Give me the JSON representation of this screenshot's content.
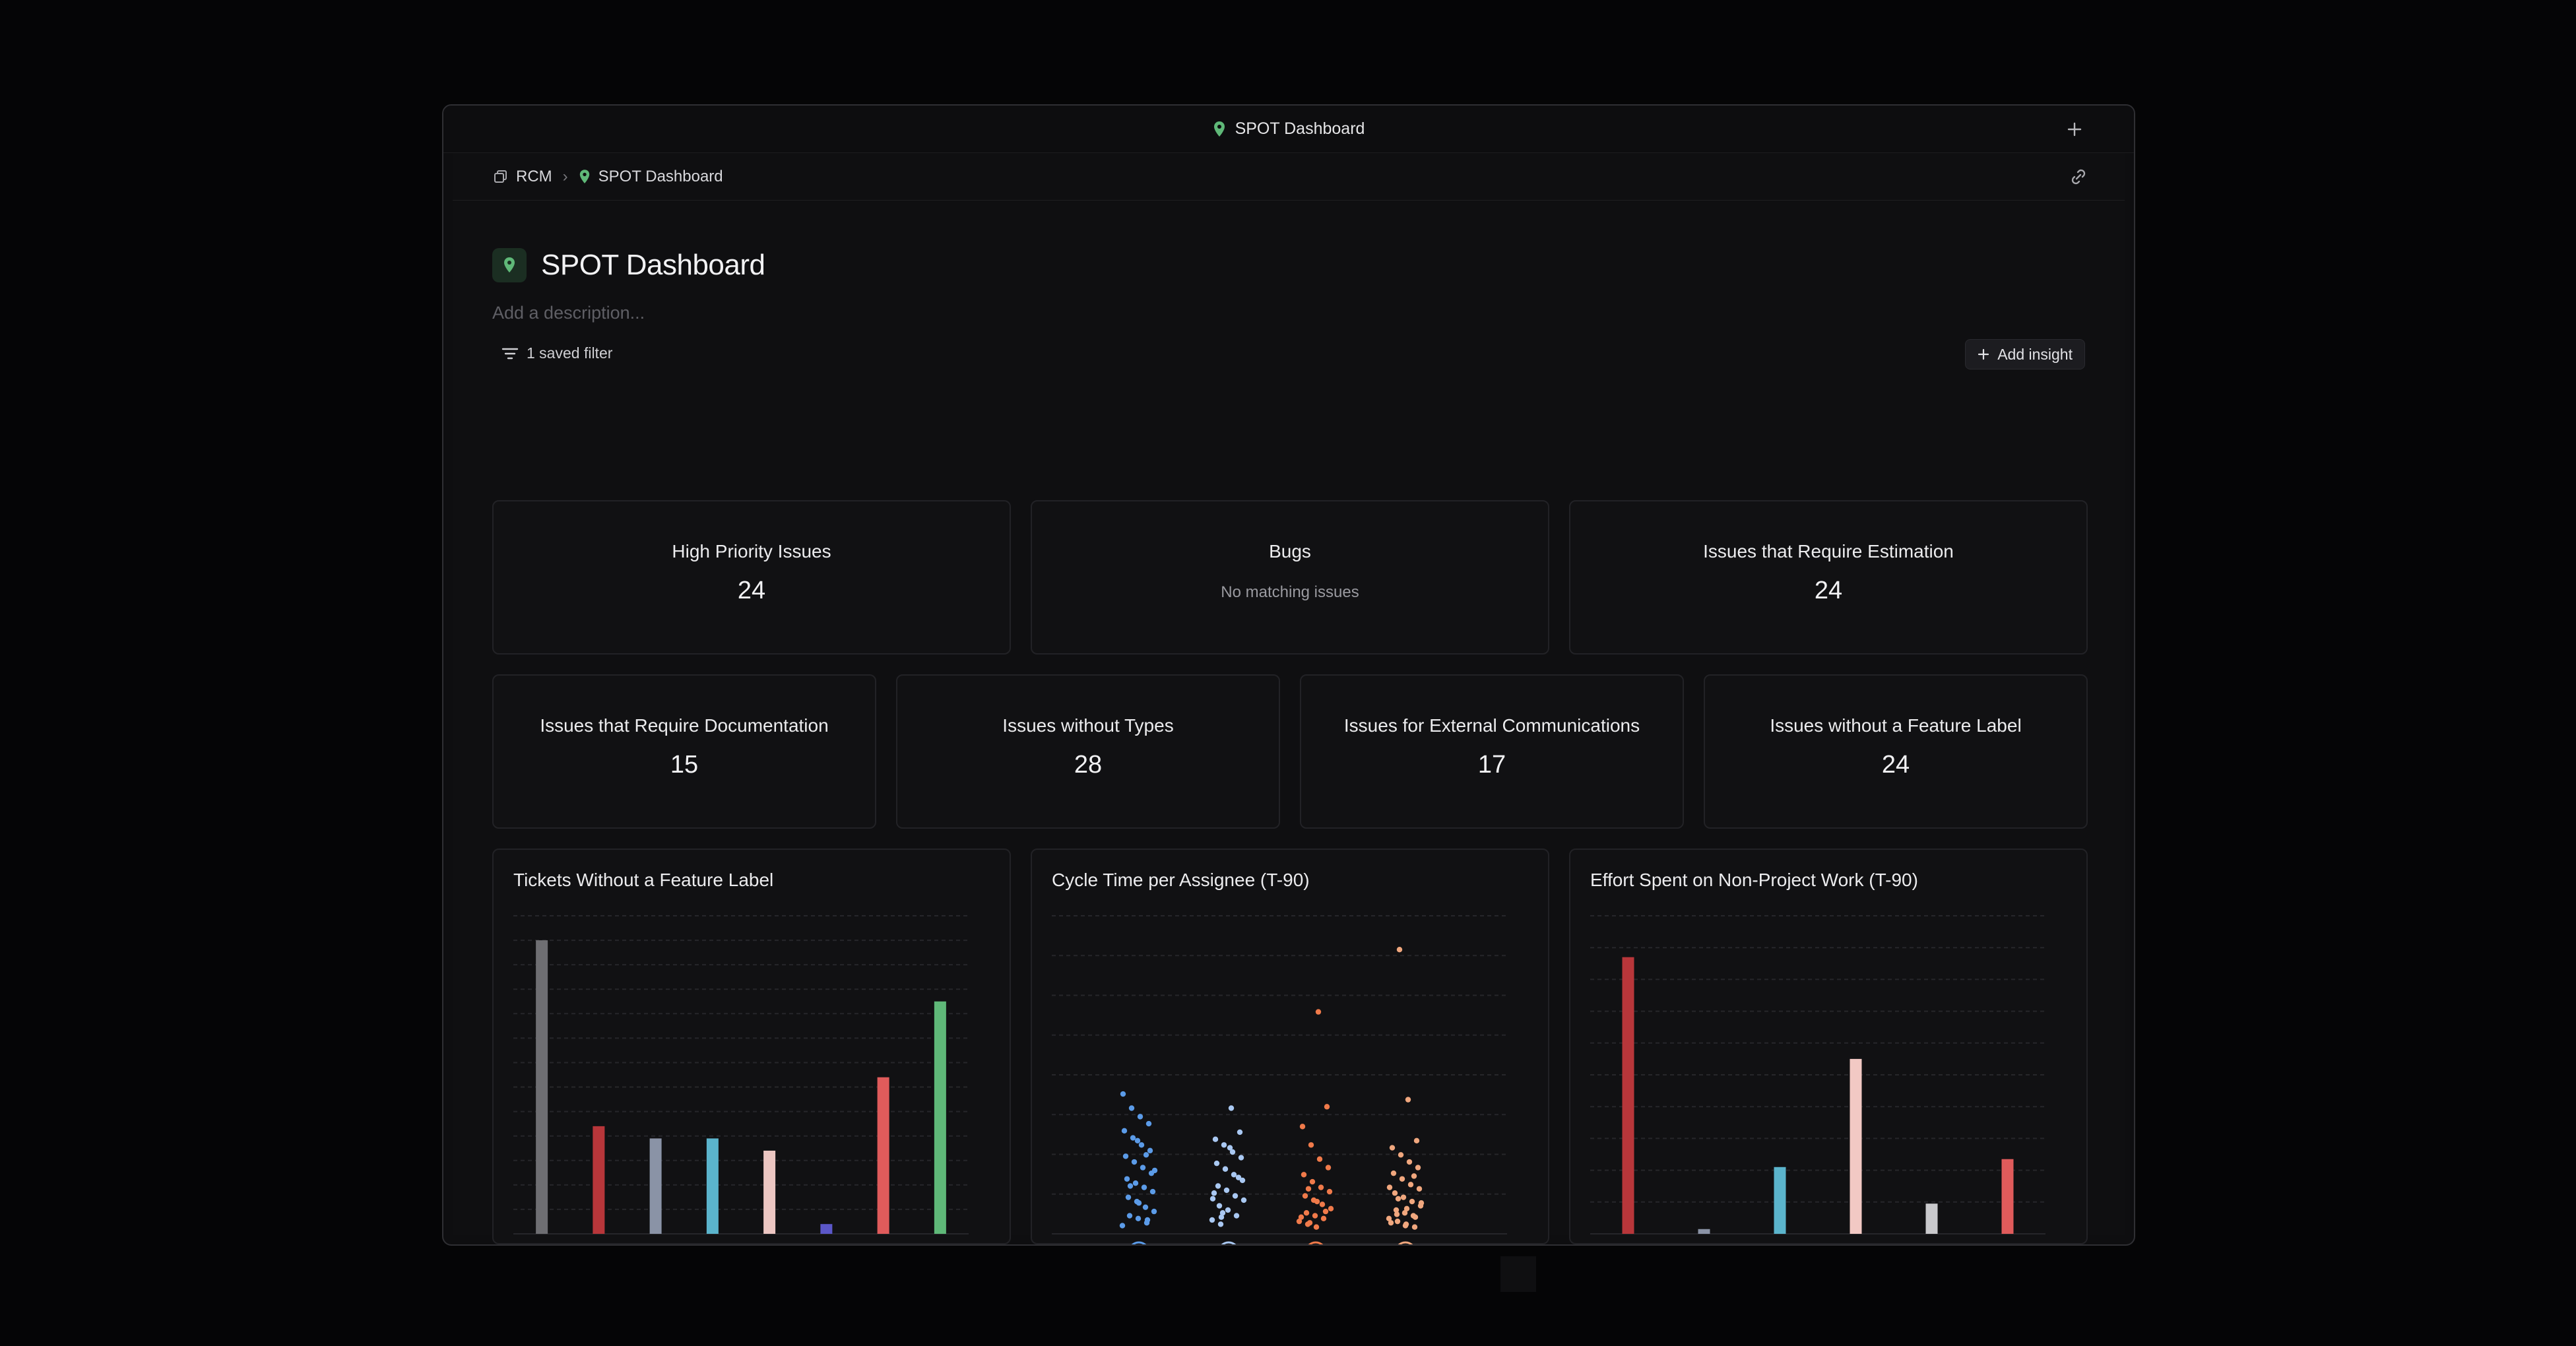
{
  "window": {
    "title": "SPOT Dashboard"
  },
  "breadcrumb": {
    "root": "RCM",
    "current": "SPOT Dashboard"
  },
  "page": {
    "title": "SPOT Dashboard",
    "description_placeholder": "Add a description...",
    "saved_filter": "1 saved filter",
    "add_insight": "Add insight"
  },
  "metrics_row1": [
    {
      "label": "High Priority Issues",
      "value": "24"
    },
    {
      "label": "Bugs",
      "empty": "No matching issues"
    },
    {
      "label": "Issues that Require Estimation",
      "value": "24"
    }
  ],
  "metrics_row2": [
    {
      "label": "Issues that Require Documentation",
      "value": "15"
    },
    {
      "label": "Issues without Types",
      "value": "28"
    },
    {
      "label": "Issues for External Communications",
      "value": "17"
    },
    {
      "label": "Issues without a Feature Label",
      "value": "24"
    }
  ],
  "colors": {
    "accent_green": "#5fb878",
    "background": "#050506",
    "panel": "#111113"
  },
  "chart_data": [
    {
      "type": "bar",
      "title": "Tickets Without a Feature Label",
      "ylim": [
        0,
        13
      ],
      "grid": true,
      "values": [
        12,
        4.4,
        3.9,
        3.9,
        3.4,
        0.4,
        6.4,
        9.5
      ],
      "colors": [
        "#6e6e72",
        "#b8363a",
        "#8a93a6",
        "#5bb4cc",
        "#ecc6c2",
        "#5b57c8",
        "#e05b5b",
        "#5fb878"
      ]
    },
    {
      "type": "scatter",
      "title": "Cycle Time per Assignee (T-90)",
      "grid": true,
      "ylim": [
        0,
        22
      ],
      "series": [
        {
          "color": "#5b9be8",
          "values": [
            0.3,
            0.5,
            0.8,
            1.0,
            1.3,
            1.6,
            2.0,
            2.3,
            2.7,
            3.0,
            3.3,
            3.6,
            4.0,
            4.4,
            4.8,
            5.2,
            5.6,
            6.0,
            6.5,
            7.0,
            7.5,
            8.0,
            8.6,
            9.6,
            0.7,
            1.9,
            3.1,
            4.2,
            5.3,
            6.3
          ]
        },
        {
          "color": "#a9c8f2",
          "values": [
            0.4,
            0.7,
            1.0,
            1.4,
            1.7,
            2.1,
            2.4,
            2.8,
            3.1,
            3.5,
            3.9,
            4.3,
            4.7,
            5.1,
            5.5,
            6.0,
            6.4,
            6.9,
            8.6,
            1.2,
            2.6,
            3.7,
            5.8,
            0.9,
            2.2
          ]
        },
        {
          "color": "#f07a4a",
          "values": [
            0.2,
            0.4,
            0.6,
            0.8,
            1.0,
            1.2,
            1.5,
            1.8,
            2.1,
            2.4,
            2.7,
            3.0,
            3.4,
            3.9,
            4.4,
            5.0,
            6.0,
            7.3,
            8.7,
            15.4,
            0.5,
            0.9,
            1.3,
            2.0,
            2.9
          ]
        },
        {
          "color": "#f0a77e",
          "values": [
            0.2,
            0.4,
            0.6,
            0.8,
            1.0,
            1.2,
            1.4,
            1.7,
            2.0,
            2.3,
            2.6,
            2.9,
            3.2,
            3.6,
            4.0,
            4.4,
            4.8,
            5.3,
            5.8,
            6.3,
            9.2,
            19.8,
            0.5,
            0.9,
            1.5,
            2.2,
            3.0,
            3.8,
            0.3,
            1.1,
            1.9
          ]
        }
      ]
    },
    {
      "type": "bar",
      "title": "Effort Spent on Non-Project Work (T-90)",
      "ylim": [
        0,
        10
      ],
      "grid": true,
      "values": [
        8.7,
        0.15,
        2.1,
        5.5,
        0.95,
        2.35
      ],
      "colors": [
        "#b8363a",
        "#8a93a6",
        "#5bb4cc",
        "#f2c9c4",
        "#c9c9cc",
        "#e05b5b"
      ]
    }
  ]
}
